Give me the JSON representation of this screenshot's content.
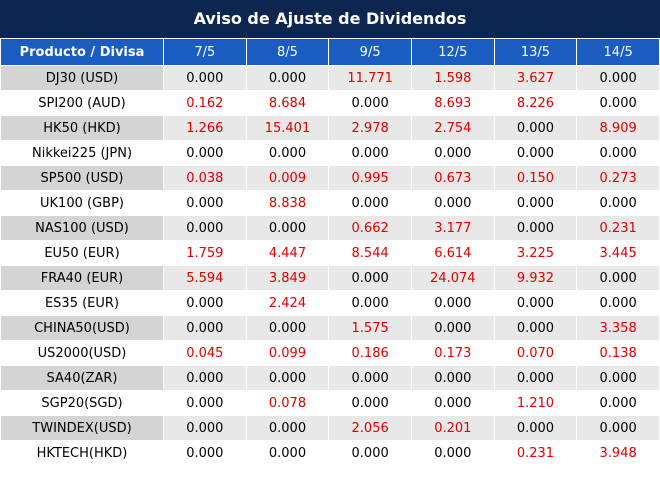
{
  "header": {
    "title": "Aviso de Ajuste de Dividendos"
  },
  "table": {
    "columns": [
      "Producto / Divisa",
      "7/5",
      "8/5",
      "9/5",
      "12/5",
      "13/5",
      "14/5"
    ],
    "rows": [
      [
        "DJ30 (USD)",
        "0.000",
        "0.000",
        "11.771",
        "1.598",
        "3.627",
        "0.000"
      ],
      [
        "SPI200 (AUD)",
        "0.162",
        "8.684",
        "0.000",
        "8.693",
        "8.226",
        "0.000"
      ],
      [
        "HK50 (HKD)",
        "1.266",
        "15.401",
        "2.978",
        "2.754",
        "0.000",
        "8.909"
      ],
      [
        "Nikkei225 (JPN)",
        "0.000",
        "0.000",
        "0.000",
        "0.000",
        "0.000",
        "0.000"
      ],
      [
        "SP500 (USD)",
        "0.038",
        "0.009",
        "0.995",
        "0.673",
        "0.150",
        "0.273"
      ],
      [
        "UK100 (GBP)",
        "0.000",
        "8.838",
        "0.000",
        "0.000",
        "0.000",
        "0.000"
      ],
      [
        "NAS100 (USD)",
        "0.000",
        "0.000",
        "0.662",
        "3.177",
        "0.000",
        "0.231"
      ],
      [
        "EU50 (EUR)",
        "1.759",
        "4.447",
        "8.544",
        "6.614",
        "3.225",
        "3.445"
      ],
      [
        "FRA40 (EUR)",
        "5.594",
        "3.849",
        "0.000",
        "24.074",
        "9.932",
        "0.000"
      ],
      [
        "ES35 (EUR)",
        "0.000",
        "2.424",
        "0.000",
        "0.000",
        "0.000",
        "0.000"
      ],
      [
        "CHINA50(USD)",
        "0.000",
        "0.000",
        "1.575",
        "0.000",
        "0.000",
        "3.358"
      ],
      [
        "US2000(USD)",
        "0.045",
        "0.099",
        "0.186",
        "0.173",
        "0.070",
        "0.138"
      ],
      [
        "SA40(ZAR)",
        "0.000",
        "0.000",
        "0.000",
        "0.000",
        "0.000",
        "0.000"
      ],
      [
        "SGP20(SGD)",
        "0.000",
        "0.078",
        "0.000",
        "0.000",
        "1.210",
        "0.000"
      ],
      [
        "TWINDEX(USD)",
        "0.000",
        "0.000",
        "2.056",
        "0.201",
        "0.000",
        "0.000"
      ],
      [
        "HKTECH(HKD)",
        "0.000",
        "0.000",
        "0.000",
        "0.000",
        "0.231",
        "3.948"
      ]
    ]
  }
}
